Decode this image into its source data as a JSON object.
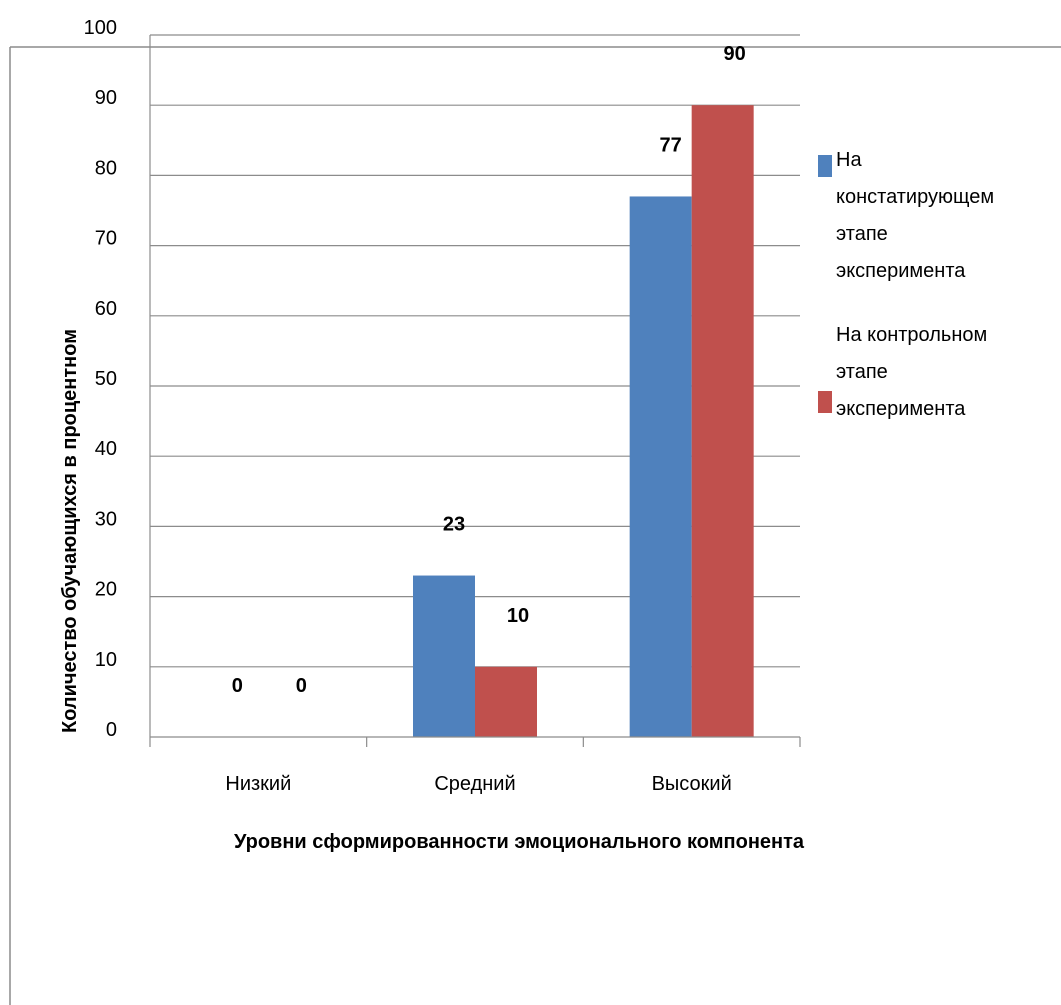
{
  "chart_data": {
    "type": "bar",
    "ylabel": "Количество обучающихся в процентном",
    "xlabel": "Уровни сформированности эмоционального компонента",
    "categories": [
      "Низкий",
      "Средний",
      "Высокий"
    ],
    "y_tick_labels": [
      "100",
      "90",
      "80",
      "70",
      "60",
      "50",
      "40",
      "30",
      "20",
      "10",
      "0"
    ],
    "ylim": [
      0,
      100
    ],
    "grid": true,
    "legend_position": "right",
    "series": [
      {
        "name_lines": [
          "На",
          "констатирующем",
          "этапе",
          "эксперимента"
        ],
        "color": "#4f81bd",
        "values": [
          0,
          23,
          77
        ],
        "labels": [
          "0",
          "23",
          "77"
        ]
      },
      {
        "name_lines": [
          "На контрольном",
          "этапе",
          "эксперимента"
        ],
        "color": "#c0504d",
        "values": [
          0,
          10,
          90
        ],
        "labels": [
          "0",
          "10",
          "90"
        ]
      }
    ]
  }
}
